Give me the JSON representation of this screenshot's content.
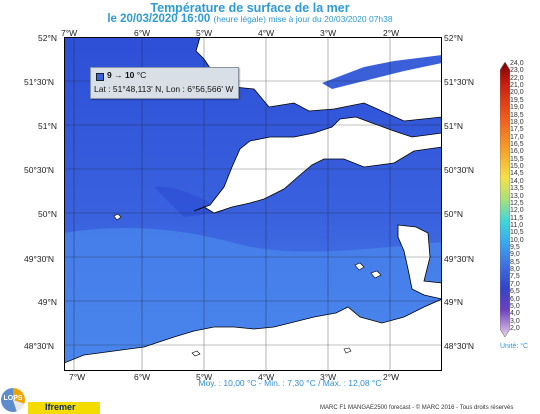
{
  "title": "Température de surface de la mer",
  "subtitle_main": "le 20/03/2020 16:00",
  "subtitle_note": "(heure légale) mise à jour du 20/03/2020 07h38",
  "map": {
    "lon_labels": [
      "7°W",
      "6°W",
      "5°W",
      "4°W",
      "3°W",
      "2°W"
    ],
    "lat_labels": [
      "52°N",
      "51°30'N",
      "51°N",
      "50°30'N",
      "50°N",
      "49°30'N",
      "49°N",
      "48°30'N"
    ],
    "sea_color": "#3f6fe0",
    "sea_color_deep": "#2d4fd6",
    "sea_color_light": "#4a86ec",
    "land_color": "#ffffff"
  },
  "tooltip": {
    "range": "9 → 10",
    "unit": "°C",
    "location": "Lat : 51°48,113' N, Lon : 6°56,566' W",
    "color": "#3a63d9"
  },
  "stats": {
    "mean": "Moy. : 10,00 °C",
    "range": "Min. : 7,30 °C / Max. : 12,08 °C"
  },
  "colorbar": {
    "labels": [
      "24,0",
      "23,0",
      "22,0",
      "21,0",
      "20,0",
      "19,5",
      "19,0",
      "18,5",
      "18,0",
      "17,5",
      "17,0",
      "16,5",
      "16,0",
      "15,5",
      "15,0",
      "14,5",
      "14,0",
      "13,5",
      "13,0",
      "12,5",
      "12,0",
      "11,5",
      "11,0",
      "10,5",
      "10,0",
      "9,5",
      "9,0",
      "8,5",
      "8,0",
      "7,5",
      "7,0",
      "6,5",
      "6,0",
      "5,0",
      "4,0",
      "3,0",
      "2,0"
    ],
    "unit": "Unité: °C"
  },
  "footer": "MARC F1 MANGAE2500 forecast - © MARC 2016 - Tous droits réservés",
  "logos": {
    "lops": "LOPS",
    "ifremer": "Ifremer"
  }
}
